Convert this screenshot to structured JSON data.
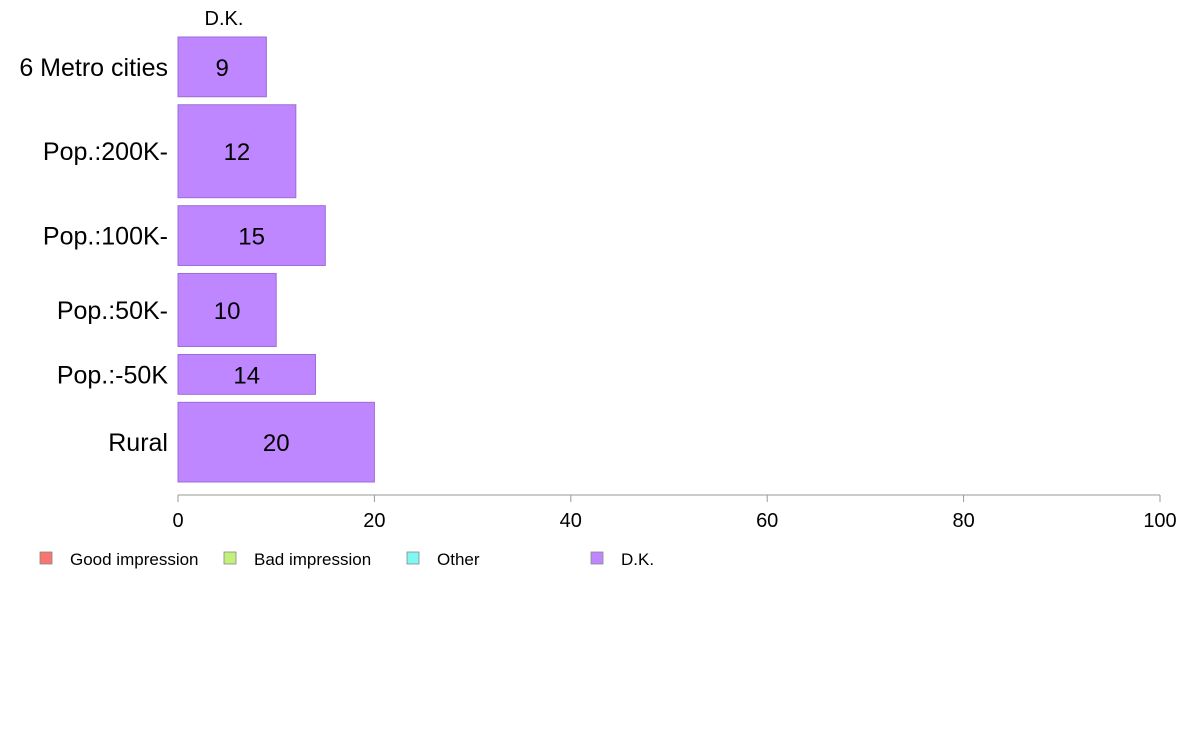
{
  "chart_data": {
    "type": "bar",
    "orientation": "horizontal",
    "stacked": true,
    "categories": [
      "6 Metro cities",
      "Pop.:200K-",
      "Pop.:100K-",
      "Pop.:50K-",
      "Pop.:-50K",
      "Rural"
    ],
    "series": [
      {
        "name": "Good impression",
        "color": "#F8766D",
        "values": [
          0,
          0,
          0,
          0,
          0,
          0
        ]
      },
      {
        "name": "Bad impression",
        "color": "#C3F07A",
        "values": [
          0,
          0,
          0,
          0,
          0,
          0
        ]
      },
      {
        "name": "Other",
        "color": "#7FF7F3",
        "values": [
          0,
          0,
          0,
          0,
          0,
          0
        ]
      },
      {
        "name": "D.K.",
        "color": "#BF87FF",
        "values": [
          9,
          12,
          15,
          10,
          14,
          20
        ]
      }
    ],
    "data_labels": [
      "9",
      "12",
      "15",
      "10",
      "14",
      "20"
    ],
    "top_label": "D.K.",
    "xlim": [
      0,
      100
    ],
    "xticks": [
      0,
      20,
      40,
      60,
      80,
      100
    ],
    "xtick_labels": [
      "0",
      "20",
      "40",
      "60",
      "80",
      "100"
    ],
    "row_weights": [
      9,
      14,
      9,
      11,
      6,
      12
    ],
    "legend_position": "bottom-left",
    "grid": false,
    "bar_stroke": "#9D6BD6"
  }
}
